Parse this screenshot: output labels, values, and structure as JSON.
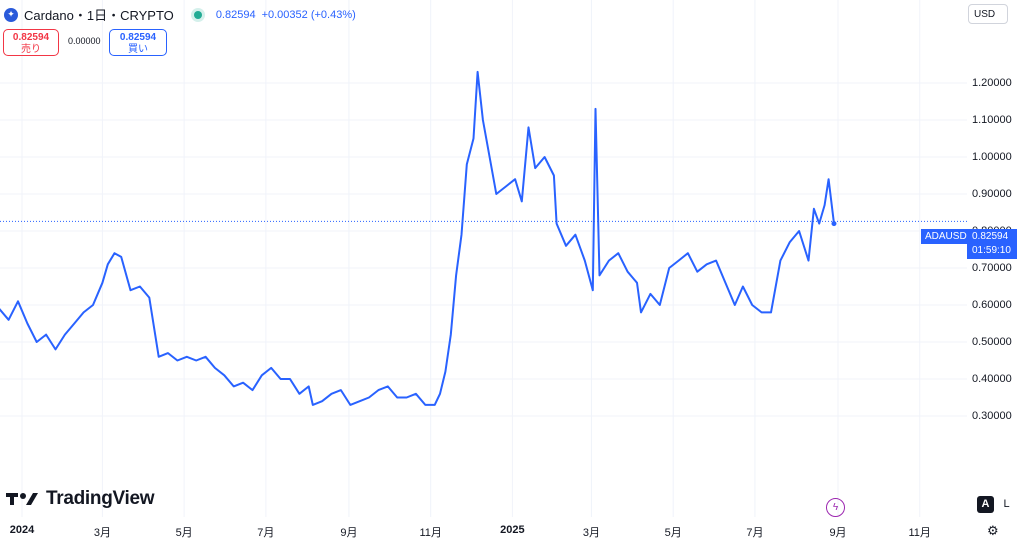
{
  "header": {
    "title": "Cardano・1日・CRYPTO",
    "price": "0.82594",
    "change": "+0.00352 (+0.43%)"
  },
  "trade": {
    "sell_price": "0.82594",
    "sell_label": "売り",
    "spread": "0.00000",
    "buy_price": "0.82594",
    "buy_label": "買い"
  },
  "currency_button": "USD",
  "price_tag": {
    "symbol": "ADAUSD",
    "price": "0.82594",
    "countdown": "01:59:10"
  },
  "brand": "TradingView",
  "scale_buttons": {
    "auto": "A",
    "log": "L"
  },
  "colors": {
    "line": "#2962ff",
    "accent": "#2962ff",
    "sell": "#f23645",
    "live": "#22ab94"
  },
  "icons": {
    "settings": "gear-icon",
    "alert": "lightning-icon",
    "coin": "cardano-logo-icon"
  },
  "chart_data": {
    "type": "line",
    "title": "",
    "xlabel": "",
    "ylabel": "",
    "ylim": [
      0.28,
      1.26
    ],
    "grid": true,
    "y_ticks": [
      "1.20000",
      "1.10000",
      "1.00000",
      "0.90000",
      "0.80000",
      "0.70000",
      "0.60000",
      "0.50000",
      "0.40000",
      "0.30000"
    ],
    "x_ticks": [
      {
        "date": "2024-01-01",
        "label": "2024",
        "bold": true
      },
      {
        "date": "2024-03-01",
        "label": "3月"
      },
      {
        "date": "2024-05-01",
        "label": "5月"
      },
      {
        "date": "2024-07-01",
        "label": "7月"
      },
      {
        "date": "2024-09-01",
        "label": "9月"
      },
      {
        "date": "2024-11-01",
        "label": "11月"
      },
      {
        "date": "2025-01-01",
        "label": "2025",
        "bold": true
      },
      {
        "date": "2025-03-01",
        "label": "3月"
      },
      {
        "date": "2025-05-01",
        "label": "5月"
      },
      {
        "date": "2025-07-01",
        "label": "7月"
      },
      {
        "date": "2025-09-01",
        "label": "9月"
      },
      {
        "date": "2025-11-01",
        "label": "11月"
      }
    ],
    "series": [
      {
        "x": [
          "2023-12-01",
          "2023-12-08",
          "2023-12-15",
          "2023-12-22",
          "2023-12-29",
          "2024-01-05",
          "2024-01-12",
          "2024-01-19",
          "2024-01-26",
          "2024-02-02",
          "2024-02-09",
          "2024-02-16",
          "2024-02-23",
          "2024-03-01",
          "2024-03-05",
          "2024-03-10",
          "2024-03-15",
          "2024-03-22",
          "2024-03-29",
          "2024-04-05",
          "2024-04-12",
          "2024-04-19",
          "2024-04-26",
          "2024-05-03",
          "2024-05-10",
          "2024-05-17",
          "2024-05-24",
          "2024-05-31",
          "2024-06-07",
          "2024-06-14",
          "2024-06-21",
          "2024-06-28",
          "2024-07-05",
          "2024-07-12",
          "2024-07-19",
          "2024-07-26",
          "2024-08-02",
          "2024-08-05",
          "2024-08-12",
          "2024-08-19",
          "2024-08-26",
          "2024-09-02",
          "2024-09-09",
          "2024-09-16",
          "2024-09-23",
          "2024-09-30",
          "2024-10-07",
          "2024-10-14",
          "2024-10-21",
          "2024-10-28",
          "2024-11-04",
          "2024-11-08",
          "2024-11-12",
          "2024-11-16",
          "2024-11-20",
          "2024-11-24",
          "2024-11-28",
          "2024-12-03",
          "2024-12-06",
          "2024-12-10",
          "2024-12-15",
          "2024-12-20",
          "2024-12-27",
          "2025-01-03",
          "2025-01-08",
          "2025-01-13",
          "2025-01-18",
          "2025-01-25",
          "2025-02-01",
          "2025-02-03",
          "2025-02-10",
          "2025-02-17",
          "2025-02-24",
          "2025-03-02",
          "2025-03-04",
          "2025-03-07",
          "2025-03-14",
          "2025-03-21",
          "2025-03-28",
          "2025-04-04",
          "2025-04-07",
          "2025-04-14",
          "2025-04-21",
          "2025-04-28",
          "2025-05-05",
          "2025-05-12",
          "2025-05-19",
          "2025-05-26",
          "2025-06-02",
          "2025-06-09",
          "2025-06-16",
          "2025-06-22",
          "2025-06-29",
          "2025-07-06",
          "2025-07-13",
          "2025-07-20",
          "2025-07-27",
          "2025-08-03",
          "2025-08-10",
          "2025-08-14",
          "2025-08-18",
          "2025-08-22",
          "2025-08-25",
          "2025-08-29"
        ],
        "values": [
          0.62,
          0.63,
          0.59,
          0.56,
          0.61,
          0.55,
          0.5,
          0.52,
          0.48,
          0.52,
          0.55,
          0.58,
          0.6,
          0.66,
          0.71,
          0.74,
          0.73,
          0.64,
          0.65,
          0.62,
          0.46,
          0.47,
          0.45,
          0.46,
          0.45,
          0.46,
          0.43,
          0.41,
          0.38,
          0.39,
          0.37,
          0.41,
          0.43,
          0.4,
          0.4,
          0.36,
          0.38,
          0.33,
          0.34,
          0.36,
          0.37,
          0.33,
          0.34,
          0.35,
          0.37,
          0.38,
          0.35,
          0.35,
          0.36,
          0.33,
          0.33,
          0.36,
          0.42,
          0.52,
          0.68,
          0.79,
          0.98,
          1.05,
          1.23,
          1.1,
          1.0,
          0.9,
          0.92,
          0.94,
          0.88,
          1.08,
          0.97,
          1.0,
          0.95,
          0.82,
          0.76,
          0.79,
          0.72,
          0.64,
          1.13,
          0.68,
          0.72,
          0.74,
          0.69,
          0.66,
          0.58,
          0.63,
          0.6,
          0.7,
          0.72,
          0.74,
          0.69,
          0.71,
          0.72,
          0.66,
          0.6,
          0.65,
          0.6,
          0.58,
          0.58,
          0.72,
          0.77,
          0.8,
          0.72,
          0.86,
          0.82,
          0.87,
          0.94,
          0.82
        ]
      }
    ],
    "last_price": 0.82594
  }
}
